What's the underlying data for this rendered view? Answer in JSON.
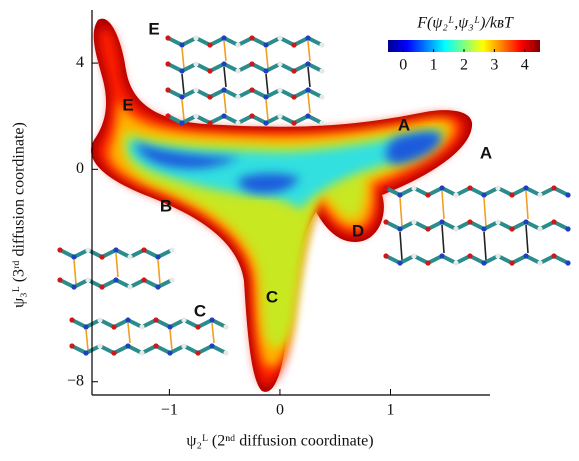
{
  "chart_data": {
    "type": "contour",
    "xlabel": "ψ₂ᴸ (2ⁿᵈ diffusion coordinate)",
    "ylabel": "ψ₃ᴸ (3ʳᵈ diffusion coordinate)",
    "xlim": [
      -1.7,
      1.9
    ],
    "xticks": [
      {
        "value": -1,
        "label": "−1"
      },
      0,
      1
    ],
    "ylim": [
      -8.5,
      6
    ],
    "yticks": [
      {
        "value": -8,
        "label": "−8"
      },
      0,
      4
    ],
    "colorbar": {
      "label": "F(ψ₂ᴸ,ψ₃ᴸ)/kʙT",
      "lim": [
        -0.5,
        4.5
      ],
      "ticks": [
        0,
        1,
        2,
        3,
        4
      ],
      "colormap": "jet"
    },
    "annotations": [
      "E",
      "E",
      "A",
      "A",
      "B",
      "C",
      "C",
      "D"
    ]
  }
}
